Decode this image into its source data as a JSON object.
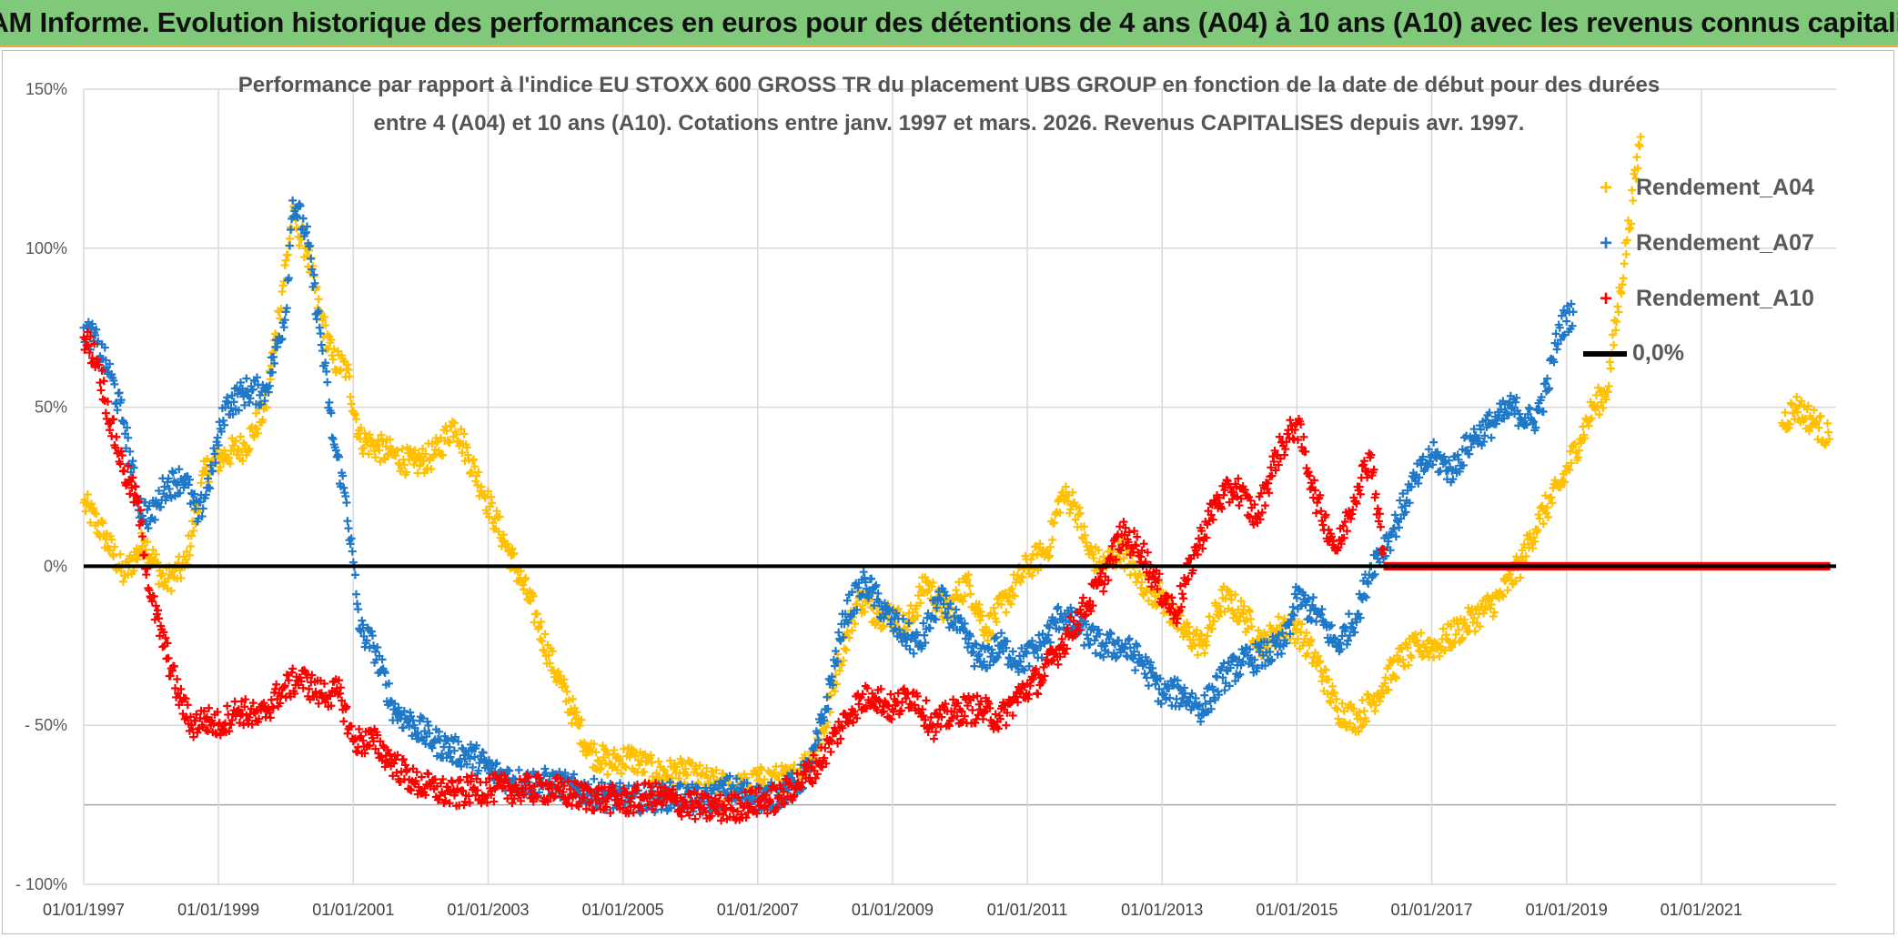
{
  "banner": {
    "title": "ADAM Informe. Evolution historique des performances en euros pour des détentions de 4 ans (A04) à 10 ans (A10) avec les revenus connus capitalisés"
  },
  "colors": {
    "banner_bg": "#80c87a",
    "banner_border": "#d9b24a",
    "grid": "#d9d9d9",
    "zero_line": "#000000",
    "A04": "#ffc000",
    "A07": "#1f78c8",
    "A10": "#ff0000"
  },
  "chart_data": {
    "type": "scatter",
    "title_line1": "Performance par rapport à l'indice EU STOXX 600 GROSS TR  du placement UBS GROUP en fonction de la date de début pour des durées",
    "title_line2": "entre 4 (A04) et 10 ans (A10). Cotations entre janv. 1997 et mars. 2026. Revenus CAPITALISES depuis avr. 1997.",
    "xlabel": "",
    "ylabel": "",
    "xlim": [
      1997.0,
      2023.0
    ],
    "ylim": [
      -100,
      150
    ],
    "y_ticks": [
      150,
      100,
      50,
      0,
      -50,
      -100
    ],
    "y_tick_labels": [
      "150%",
      "100%",
      "50%",
      "0%",
      "- 50%",
      "- 100%"
    ],
    "x_ticks": [
      1997,
      1999,
      2001,
      2003,
      2005,
      2007,
      2009,
      2011,
      2013,
      2015,
      2017,
      2019,
      2021
    ],
    "x_tick_labels": [
      "01/01/1997",
      "01/01/1999",
      "01/01/2001",
      "01/01/2003",
      "01/01/2005",
      "01/01/2007",
      "01/01/2009",
      "01/01/2011",
      "01/01/2013",
      "01/01/2015",
      "01/01/2017",
      "01/01/2019",
      "01/01/2021"
    ],
    "extra_hgrid": [
      -75
    ],
    "legend_position": "top-right",
    "series": [
      {
        "name": "Rendement_A04",
        "color_key": "A04",
        "points": [
          [
            1997.0,
            20
          ],
          [
            1997.3,
            10
          ],
          [
            1997.6,
            -3
          ],
          [
            1997.9,
            8
          ],
          [
            1998.2,
            -5
          ],
          [
            1998.5,
            0
          ],
          [
            1998.8,
            30
          ],
          [
            1999.1,
            35
          ],
          [
            1999.4,
            38
          ],
          [
            1999.7,
            50
          ],
          [
            1999.9,
            80
          ],
          [
            2000.1,
            110
          ],
          [
            2000.3,
            100
          ],
          [
            2000.5,
            80
          ],
          [
            2000.7,
            65
          ],
          [
            2000.9,
            62
          ],
          [
            2001.1,
            40
          ],
          [
            2001.3,
            38
          ],
          [
            2001.6,
            35
          ],
          [
            2001.9,
            32
          ],
          [
            2002.2,
            35
          ],
          [
            2002.5,
            45
          ],
          [
            2002.7,
            35
          ],
          [
            2002.9,
            25
          ],
          [
            2003.1,
            15
          ],
          [
            2003.3,
            5
          ],
          [
            2003.5,
            -5
          ],
          [
            2003.7,
            -15
          ],
          [
            2003.9,
            -28
          ],
          [
            2004.1,
            -38
          ],
          [
            2004.3,
            -48
          ],
          [
            2004.5,
            -58
          ],
          [
            2004.8,
            -62
          ],
          [
            2005.1,
            -60
          ],
          [
            2005.5,
            -65
          ],
          [
            2005.9,
            -65
          ],
          [
            2006.3,
            -68
          ],
          [
            2006.7,
            -70
          ],
          [
            2007.1,
            -67
          ],
          [
            2007.5,
            -67
          ],
          [
            2007.8,
            -60
          ],
          [
            2008.0,
            -50
          ],
          [
            2008.2,
            -30
          ],
          [
            2008.5,
            -10
          ],
          [
            2008.8,
            -15
          ],
          [
            2009.0,
            -15
          ],
          [
            2009.2,
            -20
          ],
          [
            2009.5,
            -5
          ],
          [
            2009.8,
            -15
          ],
          [
            2010.1,
            -5
          ],
          [
            2010.4,
            -20
          ],
          [
            2010.7,
            -10
          ],
          [
            2011.0,
            0
          ],
          [
            2011.3,
            5
          ],
          [
            2011.5,
            22
          ],
          [
            2011.7,
            20
          ],
          [
            2011.9,
            5
          ],
          [
            2012.1,
            0
          ],
          [
            2012.4,
            5
          ],
          [
            2012.7,
            -5
          ],
          [
            2013.0,
            -10
          ],
          [
            2013.3,
            -20
          ],
          [
            2013.6,
            -25
          ],
          [
            2013.9,
            -10
          ],
          [
            2014.2,
            -15
          ],
          [
            2014.5,
            -25
          ],
          [
            2014.8,
            -18
          ],
          [
            2015.0,
            -20
          ],
          [
            2015.3,
            -30
          ],
          [
            2015.6,
            -45
          ],
          [
            2015.9,
            -48
          ],
          [
            2016.2,
            -40
          ],
          [
            2016.5,
            -30
          ],
          [
            2016.8,
            -25
          ],
          [
            2017.1,
            -25
          ],
          [
            2017.4,
            -20
          ],
          [
            2017.7,
            -15
          ],
          [
            2018.0,
            -10
          ],
          [
            2018.3,
            0
          ],
          [
            2018.6,
            15
          ],
          [
            2018.9,
            25
          ],
          [
            2019.2,
            40
          ],
          [
            2019.4,
            50
          ],
          [
            2019.6,
            55
          ],
          [
            2020.1,
            135
          ],
          [
            2022.2,
            45
          ],
          [
            2022.4,
            50
          ],
          [
            2022.7,
            45
          ],
          [
            2022.9,
            40
          ]
        ]
      },
      {
        "name": "Rendement_A07",
        "color_key": "A07",
        "points": [
          [
            1997.0,
            75
          ],
          [
            1997.2,
            70
          ],
          [
            1997.4,
            60
          ],
          [
            1997.6,
            45
          ],
          [
            1997.8,
            20
          ],
          [
            1998.0,
            15
          ],
          [
            1998.2,
            25
          ],
          [
            1998.5,
            28
          ],
          [
            1998.7,
            15
          ],
          [
            1998.9,
            30
          ],
          [
            1999.1,
            50
          ],
          [
            1999.4,
            55
          ],
          [
            1999.7,
            55
          ],
          [
            2000.0,
            80
          ],
          [
            2000.1,
            115
          ],
          [
            2000.3,
            105
          ],
          [
            2000.5,
            75
          ],
          [
            2000.7,
            40
          ],
          [
            2000.9,
            20
          ],
          [
            2001.1,
            -20
          ],
          [
            2001.3,
            -25
          ],
          [
            2001.6,
            -45
          ],
          [
            2001.9,
            -50
          ],
          [
            2002.2,
            -55
          ],
          [
            2002.5,
            -58
          ],
          [
            2002.8,
            -60
          ],
          [
            2003.1,
            -65
          ],
          [
            2003.5,
            -68
          ],
          [
            2003.9,
            -68
          ],
          [
            2004.3,
            -70
          ],
          [
            2004.7,
            -72
          ],
          [
            2005.1,
            -73
          ],
          [
            2005.4,
            -73
          ],
          [
            2005.8,
            -72
          ],
          [
            2006.2,
            -74
          ],
          [
            2006.6,
            -70
          ],
          [
            2007.0,
            -73
          ],
          [
            2007.3,
            -72
          ],
          [
            2007.6,
            -68
          ],
          [
            2007.8,
            -62
          ],
          [
            2008.0,
            -45
          ],
          [
            2008.3,
            -15
          ],
          [
            2008.6,
            -5
          ],
          [
            2008.9,
            -15
          ],
          [
            2009.1,
            -20
          ],
          [
            2009.4,
            -25
          ],
          [
            2009.7,
            -10
          ],
          [
            2010.0,
            -20
          ],
          [
            2010.3,
            -30
          ],
          [
            2010.6,
            -25
          ],
          [
            2010.9,
            -30
          ],
          [
            2011.2,
            -25
          ],
          [
            2011.5,
            -15
          ],
          [
            2011.8,
            -20
          ],
          [
            2012.1,
            -25
          ],
          [
            2012.4,
            -25
          ],
          [
            2012.7,
            -30
          ],
          [
            2013.0,
            -40
          ],
          [
            2013.3,
            -40
          ],
          [
            2013.6,
            -45
          ],
          [
            2013.9,
            -35
          ],
          [
            2014.2,
            -30
          ],
          [
            2014.5,
            -28
          ],
          [
            2014.8,
            -25
          ],
          [
            2015.0,
            -10
          ],
          [
            2015.3,
            -15
          ],
          [
            2015.6,
            -25
          ],
          [
            2015.9,
            -15
          ],
          [
            2016.1,
            0
          ],
          [
            2016.4,
            10
          ],
          [
            2016.7,
            25
          ],
          [
            2017.0,
            35
          ],
          [
            2017.3,
            30
          ],
          [
            2017.6,
            40
          ],
          [
            2017.9,
            45
          ],
          [
            2018.2,
            50
          ],
          [
            2018.5,
            45
          ],
          [
            2018.7,
            55
          ],
          [
            2018.9,
            75
          ],
          [
            2019.1,
            80
          ]
        ]
      },
      {
        "name": "Rendement_A10",
        "color_key": "A10",
        "points": [
          [
            1997.0,
            72
          ],
          [
            1997.2,
            65
          ],
          [
            1997.4,
            45
          ],
          [
            1997.6,
            30
          ],
          [
            1997.8,
            20
          ],
          [
            1998.0,
            -10
          ],
          [
            1998.2,
            -25
          ],
          [
            1998.4,
            -40
          ],
          [
            1998.6,
            -50
          ],
          [
            1998.8,
            -48
          ],
          [
            1999.0,
            -50
          ],
          [
            1999.3,
            -45
          ],
          [
            1999.6,
            -48
          ],
          [
            1999.9,
            -40
          ],
          [
            2000.2,
            -35
          ],
          [
            2000.5,
            -40
          ],
          [
            2000.8,
            -40
          ],
          [
            2001.0,
            -55
          ],
          [
            2001.3,
            -55
          ],
          [
            2001.6,
            -62
          ],
          [
            2001.9,
            -68
          ],
          [
            2002.2,
            -70
          ],
          [
            2002.5,
            -72
          ],
          [
            2002.8,
            -70
          ],
          [
            2003.1,
            -70
          ],
          [
            2003.5,
            -70
          ],
          [
            2003.9,
            -70
          ],
          [
            2004.3,
            -72
          ],
          [
            2004.7,
            -73
          ],
          [
            2005.1,
            -74
          ],
          [
            2005.4,
            -72
          ],
          [
            2005.8,
            -74
          ],
          [
            2006.2,
            -76
          ],
          [
            2006.6,
            -76
          ],
          [
            2007.0,
            -74
          ],
          [
            2007.3,
            -73
          ],
          [
            2007.6,
            -68
          ],
          [
            2007.9,
            -62
          ],
          [
            2008.1,
            -55
          ],
          [
            2008.4,
            -45
          ],
          [
            2008.7,
            -40
          ],
          [
            2009.0,
            -45
          ],
          [
            2009.3,
            -40
          ],
          [
            2009.6,
            -50
          ],
          [
            2010.0,
            -45
          ],
          [
            2010.3,
            -45
          ],
          [
            2010.6,
            -48
          ],
          [
            2010.9,
            -40
          ],
          [
            2011.2,
            -35
          ],
          [
            2011.5,
            -25
          ],
          [
            2011.8,
            -15
          ],
          [
            2012.1,
            -5
          ],
          [
            2012.4,
            10
          ],
          [
            2012.7,
            5
          ],
          [
            2012.9,
            -5
          ],
          [
            2013.2,
            -15
          ],
          [
            2013.5,
            5
          ],
          [
            2013.8,
            20
          ],
          [
            2014.1,
            25
          ],
          [
            2014.4,
            15
          ],
          [
            2014.7,
            35
          ],
          [
            2015.0,
            45
          ],
          [
            2015.3,
            20
          ],
          [
            2015.6,
            5
          ],
          [
            2015.9,
            25
          ],
          [
            2016.1,
            35
          ],
          [
            2016.3,
            0
          ],
          [
            2017.0,
            0
          ],
          [
            2018.0,
            0
          ],
          [
            2019.0,
            0
          ],
          [
            2020.0,
            0
          ],
          [
            2021.0,
            0
          ],
          [
            2022.0,
            0
          ],
          [
            2022.9,
            0
          ]
        ]
      }
    ],
    "legend": [
      "Rendement_A04",
      "Rendement_A07",
      "Rendement_A10",
      "0,0%"
    ]
  }
}
